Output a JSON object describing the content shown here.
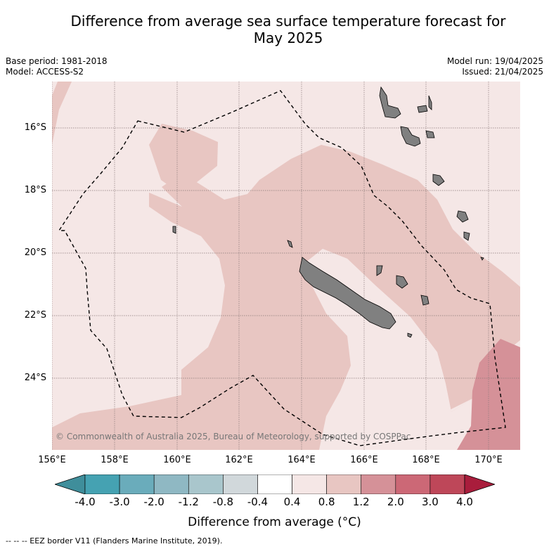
{
  "title_line1": "Difference from average sea surface temperature forecast for",
  "title_line2": "May 2025",
  "meta": {
    "base_period": "Base period: 1981-2018",
    "model": "Model: ACCESS-S2",
    "model_run": "Model run: 19/04/2025",
    "issued": "Issued: 21/04/2025"
  },
  "lat_labels": [
    "16°S",
    "18°S",
    "20°S",
    "22°S",
    "24°S"
  ],
  "lon_labels": [
    "156°E",
    "158°E",
    "160°E",
    "162°E",
    "164°E",
    "166°E",
    "168°E",
    "170°E"
  ],
  "copyright": "© Commonwealth of Australia 2025, Bureau of Meteorology, supported by COSPPac",
  "colorbar": {
    "ticks": [
      "-4.0",
      "-3.0",
      "-2.0",
      "-1.2",
      "-0.8",
      "-0.4",
      "0.4",
      "0.8",
      "1.2",
      "2.0",
      "3.0",
      "4.0"
    ],
    "colors": [
      "#3f8e9b",
      "#45a2b2",
      "#6aacbb",
      "#8fb8c3",
      "#a9c6cc",
      "#d1d8db",
      "#ffffff",
      "#f5e7e6",
      "#e8c6c2",
      "#d59198",
      "#cc6876",
      "#be4759",
      "#a91d3c"
    ],
    "label": "Difference from average (°C)"
  },
  "footer": "-- -- -- EEZ border V11 (Flanders Marine Institute, 2019)."
}
